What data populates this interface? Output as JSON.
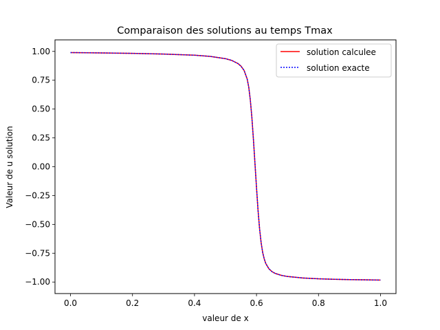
{
  "chart_data": {
    "type": "line",
    "title": "Comparaison des solutions au temps Tmax",
    "xlabel": "valeur de x",
    "ylabel": "Valeur de u solution",
    "xlim": [
      -0.05,
      1.05
    ],
    "ylim": [
      -1.1,
      1.1
    ],
    "xticks": [
      0.0,
      0.2,
      0.4,
      0.6,
      0.8,
      1.0
    ],
    "xtick_labels": [
      "0.0",
      "0.2",
      "0.4",
      "0.6",
      "0.8",
      "1.0"
    ],
    "yticks": [
      1.0,
      0.75,
      0.5,
      0.25,
      0.0,
      -0.25,
      -0.5,
      -0.75,
      -1.0
    ],
    "ytick_labels": [
      "1.00",
      "0.75",
      "0.50",
      "0.25",
      "0.00",
      "−0.25",
      "−0.50",
      "−0.75",
      "−1.00"
    ],
    "grid": false,
    "legend": "top-right",
    "x": [
      0.0,
      0.1,
      0.2,
      0.3,
      0.4,
      0.45,
      0.5,
      0.52,
      0.54,
      0.55,
      0.56,
      0.57,
      0.575,
      0.58,
      0.585,
      0.59,
      0.595,
      0.6,
      0.605,
      0.61,
      0.615,
      0.62,
      0.625,
      0.63,
      0.64,
      0.65,
      0.66,
      0.68,
      0.7,
      0.75,
      0.8,
      0.85,
      0.9,
      0.95,
      1.0
    ],
    "series": [
      {
        "name": "solution calculee",
        "color": "#ff0000",
        "style": "solid",
        "values": [
          0.99,
          0.987,
          0.983,
          0.977,
          0.967,
          0.957,
          0.937,
          0.922,
          0.895,
          0.872,
          0.835,
          0.76,
          0.69,
          0.58,
          0.43,
          0.24,
          0.03,
          -0.18,
          -0.38,
          -0.54,
          -0.66,
          -0.745,
          -0.8,
          -0.84,
          -0.885,
          -0.91,
          -0.925,
          -0.942,
          -0.952,
          -0.965,
          -0.972,
          -0.976,
          -0.979,
          -0.981,
          -0.983
        ]
      },
      {
        "name": "solution exacte",
        "color": "#0000ff",
        "style": "dotted",
        "values": [
          0.99,
          0.987,
          0.983,
          0.977,
          0.967,
          0.957,
          0.937,
          0.922,
          0.895,
          0.872,
          0.835,
          0.76,
          0.69,
          0.58,
          0.43,
          0.24,
          0.03,
          -0.18,
          -0.38,
          -0.54,
          -0.66,
          -0.745,
          -0.8,
          -0.84,
          -0.885,
          -0.91,
          -0.925,
          -0.942,
          -0.952,
          -0.965,
          -0.972,
          -0.976,
          -0.979,
          -0.981,
          -0.983
        ]
      }
    ]
  }
}
